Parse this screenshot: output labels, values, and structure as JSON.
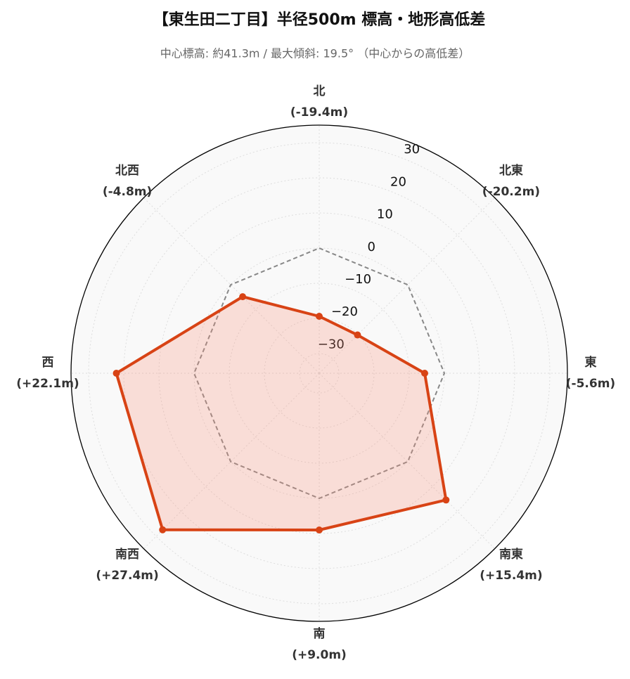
{
  "chart_data": {
    "type": "radar",
    "title": "【東生田二丁目】半径500m 標高・地形高低差",
    "subtitle": "中心標高: 約41.3m / 最大傾斜: 19.5° （中心からの高低差）",
    "categories": [
      "北",
      "北東",
      "東",
      "南東",
      "南",
      "南西",
      "西",
      "北西"
    ],
    "values": [
      -19.4,
      -20.2,
      -5.6,
      15.4,
      9.0,
      27.4,
      22.1,
      -4.8
    ],
    "value_labels": [
      "(-19.4m)",
      "(-20.2m)",
      "(-5.6m)",
      "(+15.4m)",
      "(+9.0m)",
      "(+27.4m)",
      "(+22.1m)",
      "(-4.8m)"
    ],
    "color": "#d84315",
    "ylim": [
      -35.6,
      35
    ],
    "yticks": [
      {
        "value": -30,
        "label": "−30"
      },
      {
        "value": -20,
        "label": "−20"
      },
      {
        "value": -10,
        "label": "−10"
      },
      0,
      10,
      20,
      30
    ],
    "grid": true,
    "zero_line": true
  }
}
